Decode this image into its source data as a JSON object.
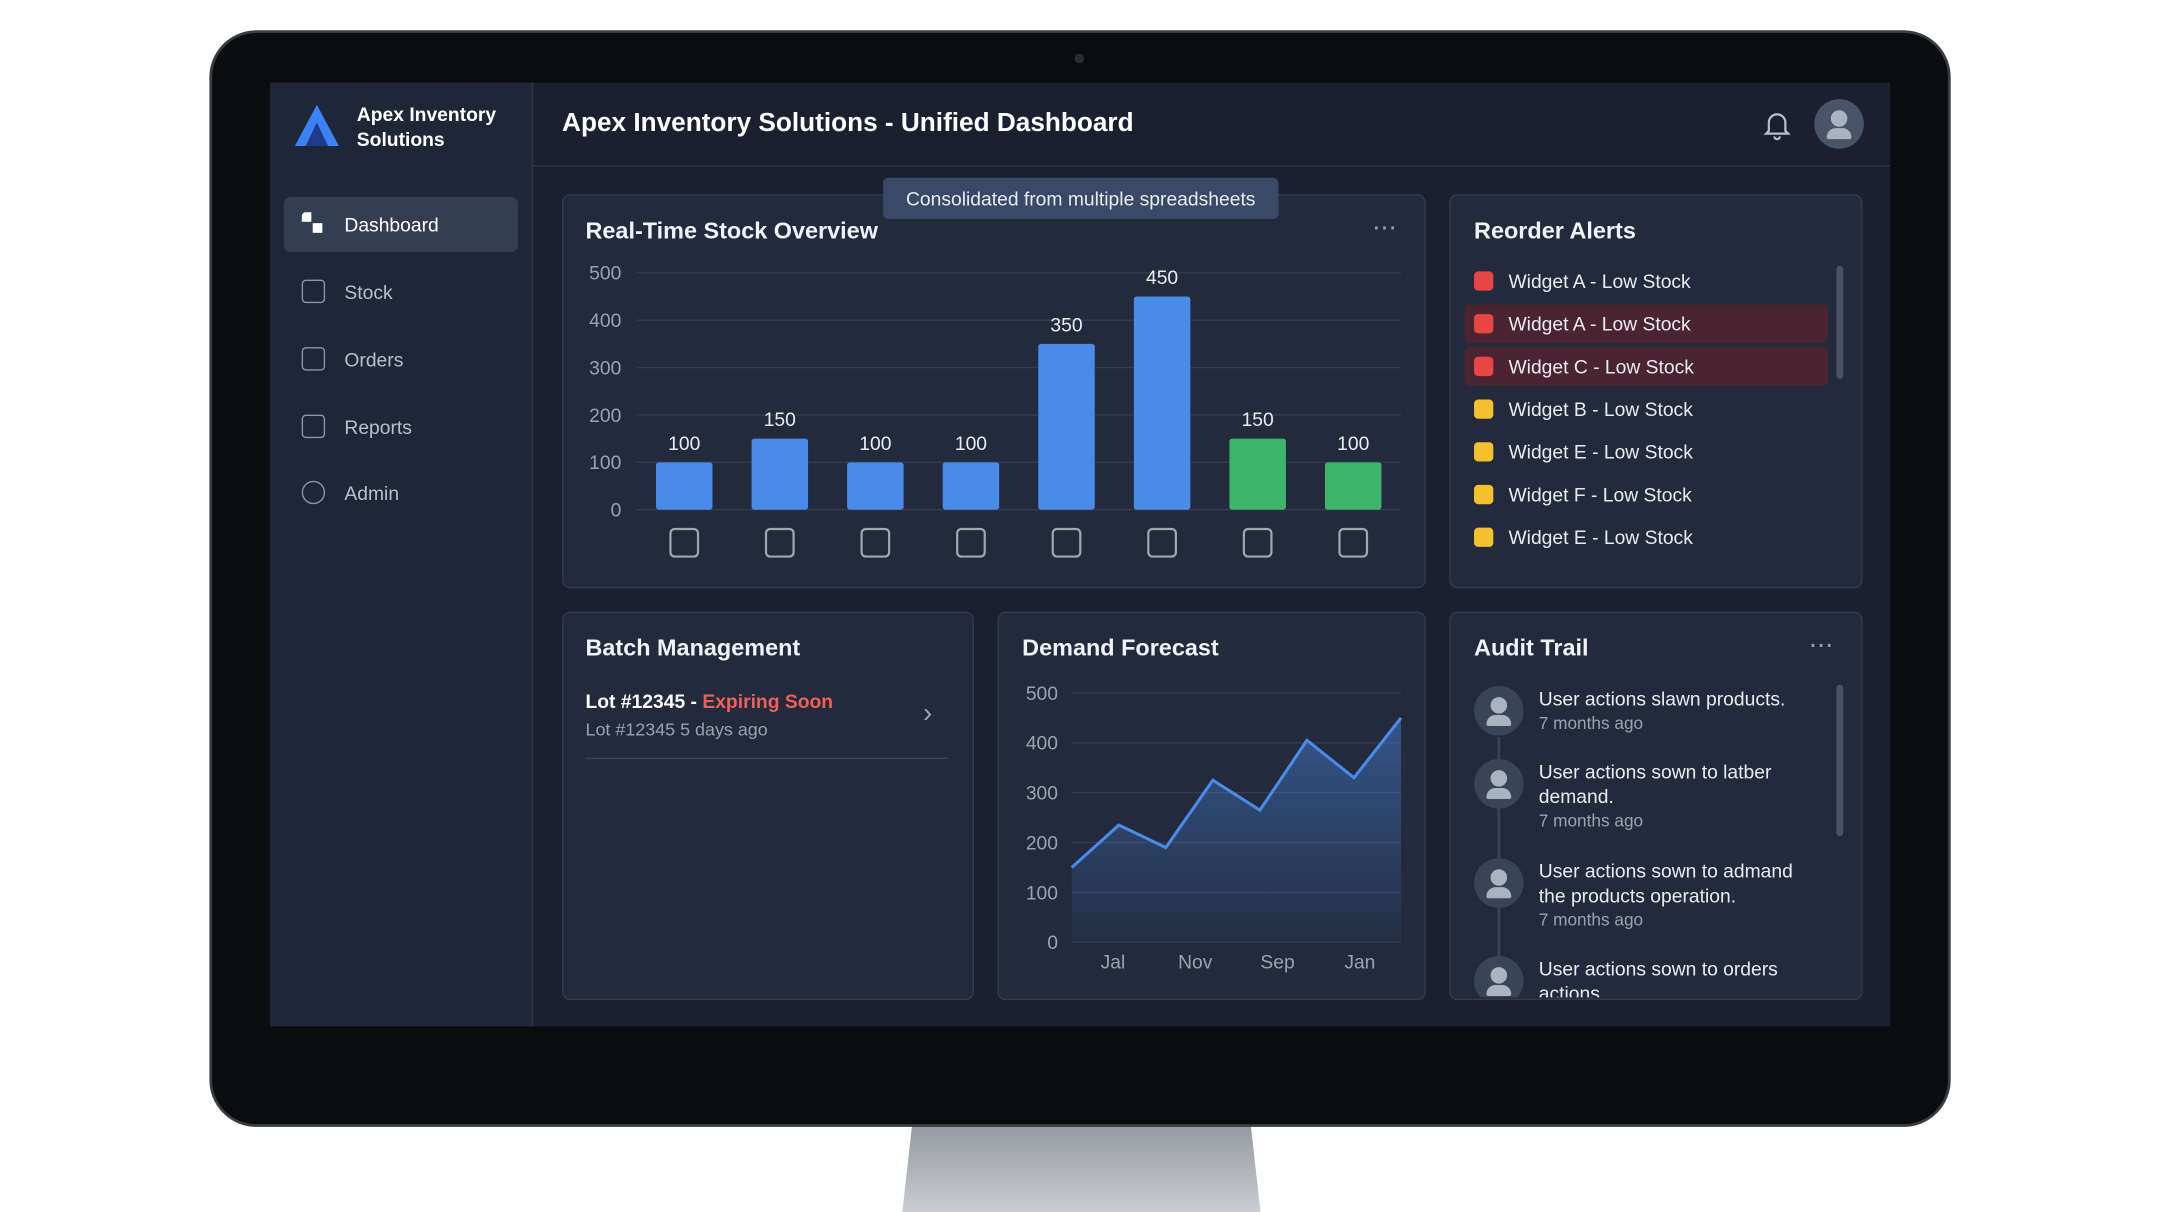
{
  "app": {
    "name": "Apex Inventory Solutions"
  },
  "nav": [
    "Dashboard",
    "Stock",
    "Orders",
    "Reports",
    "Admin"
  ],
  "header": {
    "title": "Apex Inventory Solutions - Unified Dashboard"
  },
  "tooltip": "Consolidated from multiple spreadsheets",
  "stock_chart": {
    "type": "bar",
    "title": "Real-Time Stock Overview",
    "values": [
      100,
      150,
      100,
      100,
      350,
      450,
      150,
      100
    ],
    "colors": [
      "#4a8ae8",
      "#4a8ae8",
      "#4a8ae8",
      "#4a8ae8",
      "#4a8ae8",
      "#4a8ae8",
      "#3cb56a",
      "#3cb56a"
    ],
    "ylim": [
      0,
      500
    ],
    "yticks": [
      0,
      100,
      200,
      300,
      400,
      500
    ],
    "grid": true
  },
  "reorder_alerts": {
    "title": "Reorder Alerts",
    "items": [
      {
        "label": "Widget A - Low Stock",
        "color": "#e84545"
      },
      {
        "label": "Widget A - Low Stock",
        "color": "#e84545"
      },
      {
        "label": "Widget C - Low Stock",
        "color": "#e84545"
      },
      {
        "label": "Widget B - Low Stock",
        "color": "#f5c02e"
      },
      {
        "label": "Widget E - Low Stock",
        "color": "#f5c02e"
      },
      {
        "label": "Widget F - Low Stock",
        "color": "#f5c02e"
      },
      {
        "label": "Widget E - Low Stock",
        "color": "#f5c02e"
      }
    ]
  },
  "batch": {
    "title": "Batch Management",
    "lot": "Lot #12345 -",
    "status": "Expiring Soon",
    "detail": "Lot #12345 5 days ago"
  },
  "demand_forecast": {
    "type": "area",
    "title": "Demand Forecast",
    "values": [
      150,
      235,
      190,
      325,
      265,
      405,
      330,
      450
    ],
    "x_labels": [
      "Jal",
      "Nov",
      "Sep",
      "Jan"
    ],
    "color": "#4a8ae8",
    "ylim": [
      0,
      500
    ],
    "yticks": [
      0,
      100,
      200,
      300,
      400,
      500
    ],
    "grid": true
  },
  "audit": {
    "title": "Audit Trail",
    "items": [
      {
        "text": "User actions slawn products.",
        "time": "7 months ago"
      },
      {
        "text": "User actions sown to latber demand.",
        "time": "7 months ago"
      },
      {
        "text": "User actions sown to admand the products operation.",
        "time": "7 months ago"
      },
      {
        "text": "User actions sown to orders actions"
      }
    ]
  }
}
